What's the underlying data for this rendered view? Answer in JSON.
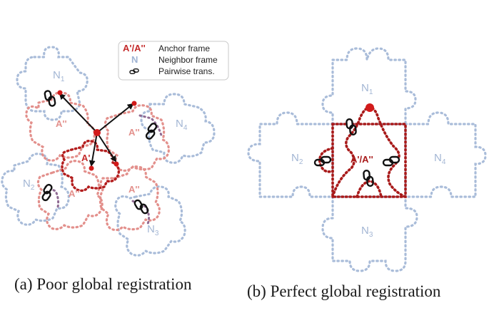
{
  "legend": {
    "items": [
      {
        "key": "A'/A''",
        "text": "Anchor frame"
      },
      {
        "key": "N",
        "text": "Neighbor frame"
      },
      {
        "key": "",
        "text": "Pairwise trans."
      }
    ]
  },
  "left_panel": {
    "neighbors": [
      {
        "base": "N",
        "sub": "1"
      },
      {
        "base": "N",
        "sub": "4"
      },
      {
        "base": "N",
        "sub": "2"
      },
      {
        "base": "N",
        "sub": "3"
      }
    ],
    "anchors": [
      "A''",
      "A''",
      "A'",
      "A''",
      "A''"
    ],
    "caption": "(a) Poor global registration"
  },
  "right_panel": {
    "neighbors": [
      {
        "base": "N",
        "sub": "1"
      },
      {
        "base": "N",
        "sub": "2"
      },
      {
        "base": "N",
        "sub": "4"
      },
      {
        "base": "N",
        "sub": "3"
      }
    ],
    "anchor": "A'/A''",
    "caption": "(b) Perfect global registration"
  },
  "colors": {
    "neighbor": "#9fb3d3",
    "anchor_light": "#e07a76",
    "anchor_dark": "#b11a1a",
    "point": "#d21a1a"
  }
}
